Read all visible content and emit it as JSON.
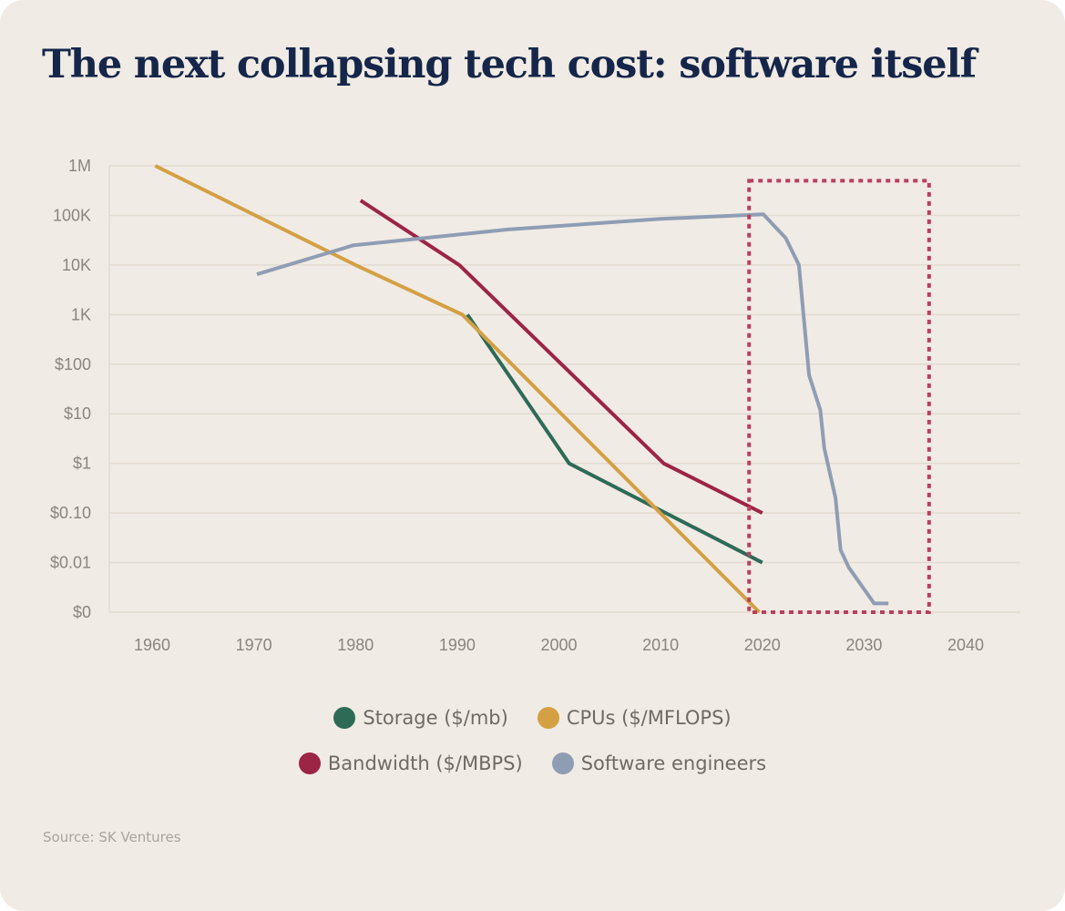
{
  "title": "The next collapsing tech cost: software itself",
  "source": "Source: SK Ventures",
  "chart_data": {
    "type": "line",
    "title": "The next collapsing tech cost: software itself",
    "xlabel": "",
    "ylabel": "",
    "y_scale": "log",
    "xlim": [
      1955,
      2045
    ],
    "ylim": [
      0.001,
      1000000
    ],
    "x_ticks": [
      1960,
      1970,
      1980,
      1990,
      2000,
      2010,
      2020,
      2030,
      2040
    ],
    "y_ticks": [
      {
        "value": 1000000,
        "label": "1M"
      },
      {
        "value": 100000,
        "label": "100K"
      },
      {
        "value": 10000,
        "label": "10K"
      },
      {
        "value": 1000,
        "label": "1K"
      },
      {
        "value": 100,
        "label": "$100"
      },
      {
        "value": 10,
        "label": "$10"
      },
      {
        "value": 1,
        "label": "$1"
      },
      {
        "value": 0.1,
        "label": "$0.10"
      },
      {
        "value": 0.01,
        "label": "$0.01"
      },
      {
        "value": 0.001,
        "label": "$0"
      }
    ],
    "grid": true,
    "legend_placement": "bottom-center",
    "series": [
      {
        "name": "Storage ($/mb)",
        "color": "#2d6b57",
        "x": [
          1991,
          2001,
          2010.5,
          2020
        ],
        "y": [
          1000,
          1,
          0.1,
          0.01
        ]
      },
      {
        "name": "CPUs ($/MFLOPS)",
        "color": "#d4a044",
        "x": [
          1960.3,
          1980,
          1990.5,
          2019.7
        ],
        "y": [
          1000000,
          10000,
          1000,
          0.001
        ]
      },
      {
        "name": "Bandwidth ($/MBPS)",
        "color": "#9c2444",
        "x": [
          1980.5,
          1990.2,
          2010.3,
          2020
        ],
        "y": [
          200000,
          10000,
          1,
          0.1
        ]
      },
      {
        "name": "Software engineers",
        "color": "#8f9db4",
        "x": [
          1970.3,
          1979.8,
          1995,
          2010,
          2020.1,
          2022.3,
          2023.6,
          2024.6,
          2025.7,
          2026.1,
          2027.2,
          2027.7,
          2028.5,
          2031,
          2032.4
        ],
        "y": [
          6500,
          25000,
          52000,
          85000,
          105000,
          35000,
          10000,
          60,
          12,
          2,
          0.2,
          0.018,
          0.008,
          0.0015,
          0.0015
        ]
      }
    ],
    "annotations": [
      {
        "type": "dashed-box",
        "color": "#b8405c",
        "x_range": [
          2018.7,
          2036.4
        ],
        "y_range": [
          0.001,
          500000
        ]
      }
    ]
  }
}
